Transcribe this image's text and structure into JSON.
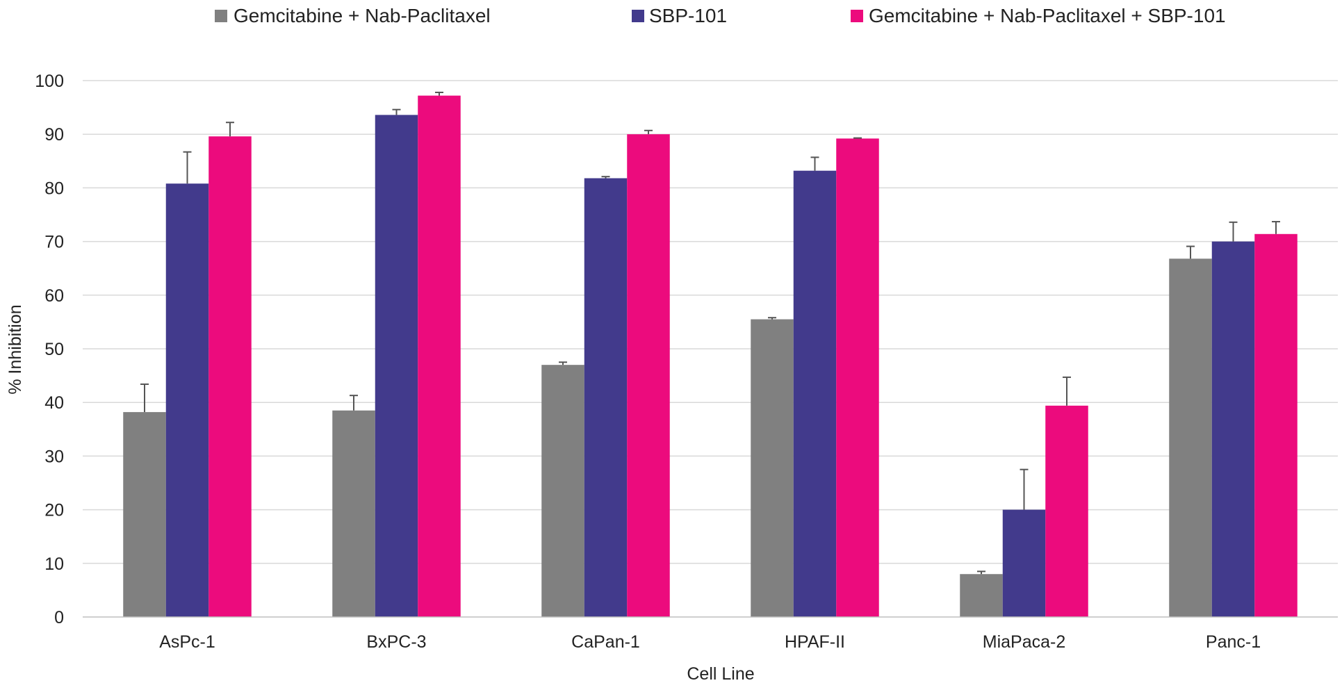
{
  "chart_data": {
    "type": "bar",
    "title": "",
    "xlabel": "Cell Line",
    "ylabel": "% Inhibition",
    "categories": [
      "AsPc-1",
      "BxPC-3",
      "CaPan-1",
      "HPAF-II",
      "MiaPaca-2",
      "Panc-1"
    ],
    "series": [
      {
        "name": "Gemcitabine + Nab-Paclitaxel",
        "color": "#808080",
        "values": [
          38.2,
          38.5,
          47.0,
          55.5,
          8.0,
          66.8
        ],
        "errors": [
          5.2,
          2.8,
          0.5,
          0.3,
          0.5,
          2.3
        ]
      },
      {
        "name": "SBP-101",
        "color": "#423a8c",
        "values": [
          80.8,
          93.6,
          81.8,
          83.2,
          20.0,
          70.0
        ],
        "errors": [
          5.9,
          1.0,
          0.3,
          2.5,
          7.5,
          3.6
        ]
      },
      {
        "name": "Gemcitabine + Nab-Paclitaxel + SBP-101",
        "color": "#ec0b7d",
        "values": [
          89.6,
          97.2,
          90.0,
          89.2,
          39.4,
          71.4
        ],
        "errors": [
          2.6,
          0.6,
          0.7,
          0.1,
          5.3,
          2.3
        ]
      }
    ],
    "yticks": [
      0,
      10,
      20,
      30,
      40,
      50,
      60,
      70,
      80,
      90,
      100
    ],
    "ylim": [
      0,
      100
    ],
    "grid": true,
    "legend": "top"
  }
}
